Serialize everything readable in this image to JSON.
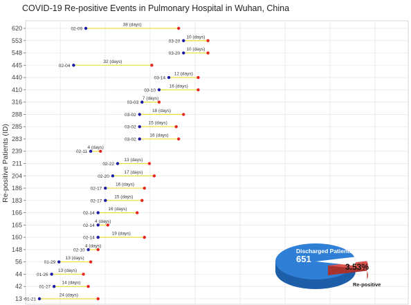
{
  "title": "COVID-19 Re-positive Events in Pulmonary Hospital in Wuhan, China",
  "chart_data": [
    {
      "type": "timeline",
      "ylabel": "Re-positive Patients (ID)",
      "grid": true,
      "colors": {
        "discharge": "#1a1aa6",
        "repositive": "#e5261f",
        "line": "#e8dd3a",
        "grid": "#e6e6e6"
      },
      "patients": [
        {
          "id": "620",
          "discharge_date": "02-09",
          "days": 38,
          "days_label": "38 (days)"
        },
        {
          "id": "553",
          "discharge_date": "03-20",
          "days": 10,
          "days_label": "10 (days)"
        },
        {
          "id": "548",
          "discharge_date": "03-20",
          "days": 10,
          "days_label": "10 (days)"
        },
        {
          "id": "445",
          "discharge_date": "02-04",
          "days": 32,
          "days_label": "32 (days)"
        },
        {
          "id": "440",
          "discharge_date": "03-14",
          "days": 12,
          "days_label": "12 (days)"
        },
        {
          "id": "410",
          "discharge_date": "03-10",
          "days": 16,
          "days_label": "16 (days)"
        },
        {
          "id": "316",
          "discharge_date": "03-03",
          "days": 7,
          "days_label": "7 (days)"
        },
        {
          "id": "288",
          "discharge_date": "03-02",
          "days": 18,
          "days_label": "18 (days)"
        },
        {
          "id": "285",
          "discharge_date": "03-02",
          "days": 15,
          "days_label": "15 (days)"
        },
        {
          "id": "283",
          "discharge_date": "03-02",
          "days": 16,
          "days_label": "16 (days)"
        },
        {
          "id": "239",
          "discharge_date": "02-11",
          "days": 4,
          "days_label": "4 (days)"
        },
        {
          "id": "211",
          "discharge_date": "02-22",
          "days": 13,
          "days_label": "13 (days)"
        },
        {
          "id": "204",
          "discharge_date": "02-20",
          "days": 17,
          "days_label": "17 (days)"
        },
        {
          "id": "186",
          "discharge_date": "02-17",
          "days": 16,
          "days_label": "16 (days)"
        },
        {
          "id": "183",
          "discharge_date": "02-17",
          "days": 15,
          "days_label": "15 (days)"
        },
        {
          "id": "166",
          "discharge_date": "02-14",
          "days": 16,
          "days_label": "16 (days)"
        },
        {
          "id": "165",
          "discharge_date": "02-14",
          "days": 4,
          "days_label": "4 (days)"
        },
        {
          "id": "160",
          "discharge_date": "02-14",
          "days": 19,
          "days_label": "19 (days)"
        },
        {
          "id": "148",
          "discharge_date": "02-10",
          "days": 4,
          "days_label": "4 (days)"
        },
        {
          "id": "56",
          "discharge_date": "01-29",
          "days": 13,
          "days_label": "13 (days)"
        },
        {
          "id": "44",
          "discharge_date": "01-26",
          "days": 13,
          "days_label": "13 (days)"
        },
        {
          "id": "42",
          "discharge_date": "01-27",
          "days": 14,
          "days_label": "14 (days)"
        },
        {
          "id": "13",
          "discharge_date": "01-21",
          "days": 24,
          "days_label": "24 (days)"
        }
      ]
    },
    {
      "type": "pie",
      "slices": [
        {
          "name": "Discharged Patients",
          "value": 651,
          "value_label": "651",
          "color": "#2f7fd6"
        },
        {
          "name": "Re-positive",
          "value": 3.53,
          "value_label": "3.53%",
          "color": "#d9544f"
        }
      ]
    }
  ]
}
